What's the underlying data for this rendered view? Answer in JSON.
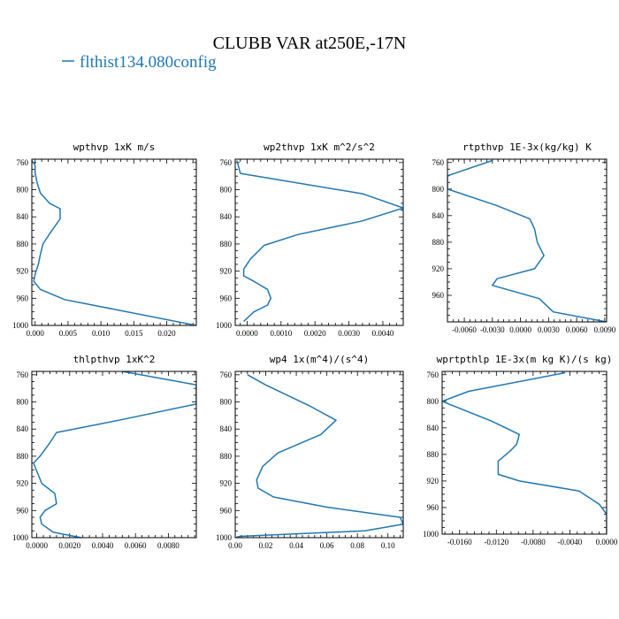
{
  "figure": {
    "title": "CLUBB VAR at250E,-17N",
    "legend_label": "flthist134.080config",
    "series_color": "#1f77b4"
  },
  "chart_data": [
    {
      "type": "line",
      "title": "wpthvp  1xK m/s",
      "xlim": [
        -0.0005,
        0.0245
      ],
      "ylim": [
        1000,
        755
      ],
      "y_reversed": true,
      "xticks": [
        0,
        0.005,
        0.01,
        0.015,
        0.02
      ],
      "xtick_labels": [
        "0.000",
        "0.005",
        "0.010",
        "0.015",
        "0.020"
      ],
      "yticks": [
        760,
        800,
        840,
        880,
        920,
        960,
        1000
      ],
      "series": [
        {
          "x": [
            -0.0005,
            0.0,
            0.0,
            0.0003,
            0.0008,
            0.0022,
            0.0038,
            0.0038,
            0.0022,
            0.0012,
            0.0008,
            0.0005,
            0.0,
            -0.0002,
            0.0008,
            0.0045,
            0.0245
          ],
          "y": [
            757,
            764,
            775,
            790,
            805,
            820,
            828,
            843,
            865,
            880,
            895,
            910,
            925,
            935,
            947,
            962,
            1000
          ]
        }
      ]
    },
    {
      "type": "line",
      "title": "wp2thvp  1xK m^2/s^2",
      "xlim": [
        -0.00035,
        0.0046
      ],
      "ylim": [
        1000,
        755
      ],
      "y_reversed": true,
      "xticks": [
        0,
        0.001,
        0.002,
        0.003,
        0.004
      ],
      "xtick_labels": [
        "0.0000",
        "0.0010",
        "0.0020",
        "0.0030",
        "0.0040"
      ],
      "yticks": [
        760,
        800,
        840,
        880,
        920,
        960,
        1000
      ],
      "series": [
        {
          "x": [
            -0.0003,
            -0.0002,
            0.0034,
            0.0046,
            0.0034,
            0.0015,
            0.0005,
            0.0001,
            -0.0001,
            -0.0001,
            0.0002,
            0.0006,
            0.0007,
            0.0006,
            0.0002,
            -0.0001
          ],
          "y": [
            757,
            776,
            806,
            827,
            846,
            866,
            882,
            902,
            917,
            927,
            935,
            947,
            960,
            970,
            980,
            994
          ]
        }
      ]
    },
    {
      "type": "line",
      "title": "rtpthvp  1E-3x(kg/kg) K",
      "xlim": [
        -0.0078,
        0.0092
      ],
      "ylim": [
        1000,
        755
      ],
      "y_reversed": true,
      "xticks": [
        -0.006,
        -0.003,
        0,
        0.003,
        0.006,
        0.009
      ],
      "xtick_labels": [
        "-0.0060",
        "-0.0030",
        "0.0000",
        "0.0030",
        "0.0060",
        "0.0090"
      ],
      "yticks": [
        760,
        800,
        840,
        880,
        920,
        960
      ],
      "series": [
        {
          "x": [
            -0.003,
            -0.0078,
            -0.0078,
            -0.0025,
            0.001,
            0.0015,
            0.0018,
            0.0025,
            0.0015,
            -0.0025,
            -0.003,
            0.002,
            0.0035,
            0.0092
          ],
          "y": [
            757,
            780,
            800,
            825,
            845,
            860,
            880,
            900,
            920,
            935,
            945,
            965,
            985,
            1000
          ]
        }
      ]
    },
    {
      "type": "line",
      "title": "thlpthvp  1xK^2",
      "xlim": [
        -0.0003,
        0.0097
      ],
      "ylim": [
        1000,
        755
      ],
      "y_reversed": true,
      "xticks": [
        0,
        0.002,
        0.004,
        0.006,
        0.008
      ],
      "xtick_labels": [
        "0.0000",
        "0.0020",
        "0.0040",
        "0.0060",
        "0.0080"
      ],
      "yticks": [
        760,
        800,
        840,
        880,
        920,
        960,
        1000
      ],
      "series": [
        {
          "x": [
            0.0052,
            0.0097,
            0.0097,
            0.005,
            0.0012,
            0.0008,
            0.0005,
            0.0002,
            -0.0002,
            0.0003,
            0.0011,
            0.0012,
            0.0005,
            0.0002,
            0.0003,
            0.001,
            0.0027
          ],
          "y": [
            755,
            775,
            803,
            827,
            845,
            860,
            870,
            880,
            890,
            920,
            935,
            950,
            960,
            970,
            980,
            992,
            1000
          ]
        }
      ]
    },
    {
      "type": "line",
      "title": "wp4  1x(m^4)/(s^4)",
      "xlim": [
        0.0,
        0.11
      ],
      "ylim": [
        1000,
        755
      ],
      "y_reversed": true,
      "xticks": [
        0,
        0.02,
        0.04,
        0.06,
        0.08,
        0.1
      ],
      "xtick_labels": [
        "0.00",
        "0.02",
        "0.04",
        "0.06",
        "0.08",
        "0.10"
      ],
      "yticks": [
        760,
        800,
        840,
        880,
        920,
        960,
        1000
      ],
      "series": [
        {
          "x": [
            0.008,
            0.02,
            0.048,
            0.066,
            0.056,
            0.028,
            0.018,
            0.014,
            0.015,
            0.025,
            0.06,
            0.108,
            0.11,
            0.085,
            0.003,
            0.0
          ],
          "y": [
            760,
            775,
            805,
            827,
            848,
            875,
            895,
            915,
            927,
            940,
            955,
            970,
            980,
            990,
            998,
            1000
          ]
        }
      ]
    },
    {
      "type": "line",
      "title": "wprtpthlp  1E-3x(m kg K)/(s kg)",
      "xlim": [
        -0.0179,
        0.0
      ],
      "ylim": [
        1000,
        755
      ],
      "y_reversed": true,
      "xticks": [
        -0.016,
        -0.012,
        -0.008,
        -0.004,
        0.0
      ],
      "xtick_labels": [
        "-0.0160",
        "-0.0120",
        "-0.0080",
        "-0.0040",
        "0.0000"
      ],
      "yticks": [
        760,
        800,
        840,
        880,
        920,
        960,
        1000
      ],
      "series": [
        {
          "x": [
            -0.0045,
            -0.015,
            -0.0179,
            -0.0125,
            -0.0095,
            -0.0098,
            -0.0105,
            -0.0118,
            -0.0118,
            -0.0095,
            -0.003,
            -0.0008,
            0.0,
            0.0
          ],
          "y": [
            757,
            785,
            800,
            830,
            850,
            865,
            875,
            890,
            910,
            920,
            935,
            955,
            970,
            1000
          ]
        }
      ]
    }
  ]
}
